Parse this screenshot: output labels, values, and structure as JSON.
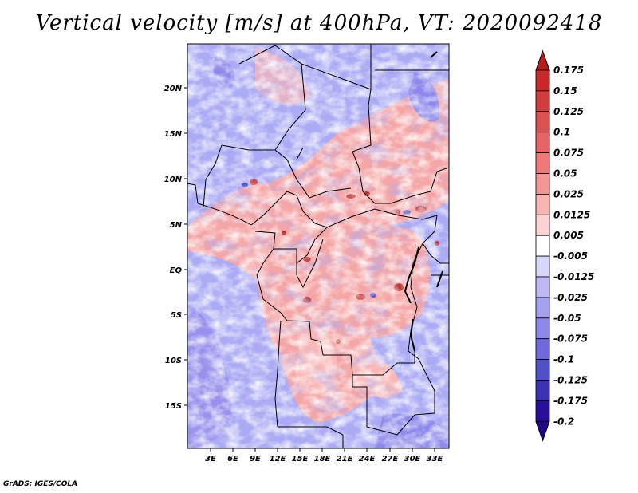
{
  "title": "Vertical velocity [m/s] at 400hPa, VT: 2020092418",
  "credit": "GrADS: IGES/COLA",
  "map": {
    "lat_labels": [
      "20N",
      "15N",
      "10N",
      "5N",
      "EQ",
      "5S",
      "10S",
      "15S"
    ],
    "lon_labels": [
      "3E",
      "6E",
      "9E",
      "12E",
      "15E",
      "18E",
      "21E",
      "24E",
      "27E",
      "30E",
      "33E"
    ]
  },
  "colorbar": {
    "levels": [
      "0.175",
      "0.15",
      "0.125",
      "0.1",
      "0.075",
      "0.05",
      "0.025",
      "0.0125",
      "0.005",
      "-0.005",
      "-0.0125",
      "-0.025",
      "-0.05",
      "-0.075",
      "-0.1",
      "-0.125",
      "-0.175",
      "-0.2"
    ],
    "colors": [
      "#b41e1e",
      "#c82828",
      "#d23c3c",
      "#dc5050",
      "#e66464",
      "#f07878",
      "#f59696",
      "#fab4b4",
      "#fcd2d2",
      "#ffffff",
      "#d7d7fa",
      "#beb9f5",
      "#a5a0f0",
      "#8c87eb",
      "#6e69dc",
      "#5050c8",
      "#3c32b4",
      "#280f9b",
      "#1e0587"
    ]
  },
  "colors": {
    "positive": "#f5a0a0",
    "negative": "#aaaaf5",
    "neutral": "#ffffff"
  }
}
